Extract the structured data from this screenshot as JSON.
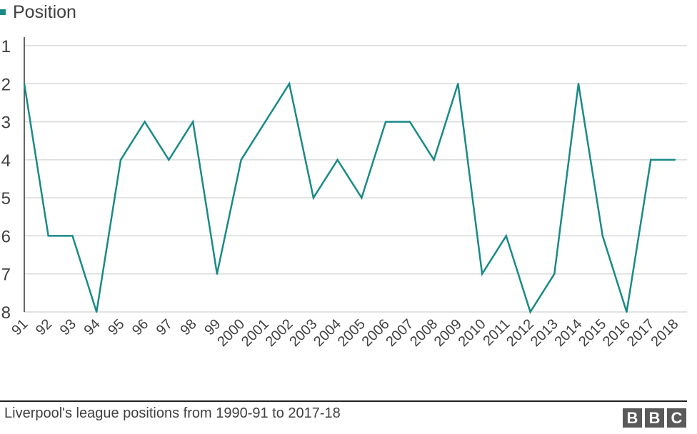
{
  "chart_data": {
    "type": "line",
    "series": [
      {
        "name": "Position",
        "color": "#1a8a87",
        "values": [
          2,
          6,
          6,
          8,
          4,
          3,
          4,
          3,
          7,
          4,
          3,
          2,
          5,
          4,
          5,
          3,
          3,
          4,
          2,
          7,
          6,
          8,
          7,
          2,
          6,
          8,
          4,
          4
        ]
      }
    ],
    "categories": [
      "91",
      "92",
      "93",
      "94",
      "95",
      "96",
      "97",
      "98",
      "99",
      "2000",
      "2001",
      "2002",
      "2003",
      "2004",
      "2005",
      "2006",
      "2007",
      "2008",
      "2009",
      "2010",
      "2011",
      "2012",
      "2013",
      "2014",
      "2015",
      "2016",
      "2017",
      "2018"
    ],
    "yticks": [
      "1",
      "2",
      "3",
      "4",
      "5",
      "6",
      "7",
      "8"
    ],
    "ylim": [
      1,
      8
    ],
    "y_inverted": true,
    "grid": true,
    "legend_position": "top-left",
    "title": "",
    "xlabel": "",
    "ylabel": ""
  },
  "legend": {
    "label": "Position"
  },
  "footer": {
    "source": "Liverpool's league positions from 1990-91 to 2017-18",
    "logo_letters": [
      "B",
      "B",
      "C"
    ]
  },
  "colors": {
    "line": "#1a8a87",
    "grid": "#d9d9d9",
    "axis": "#333333",
    "text": "#404040",
    "logo": "#5a5a5a"
  }
}
